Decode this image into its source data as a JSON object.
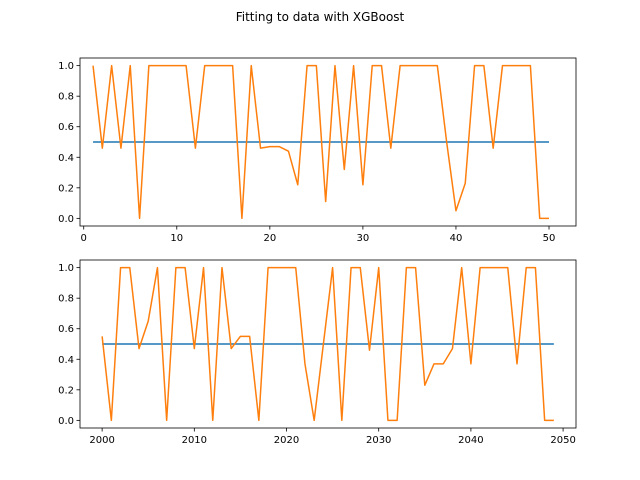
{
  "suptitle": "Fitting to data with XGBoost",
  "chart_data": [
    {
      "type": "line",
      "title": "",
      "xlabel": "",
      "ylabel": "",
      "xlim": [
        -0.4,
        52.9
      ],
      "ylim": [
        -0.05,
        1.05
      ],
      "xticks": [
        0,
        10,
        20,
        30,
        40,
        50
      ],
      "yticks": [
        0.0,
        0.2,
        0.4,
        0.6,
        0.8,
        1.0
      ],
      "xtick_labels": [
        "0",
        "10",
        "20",
        "30",
        "40",
        "50"
      ],
      "ytick_labels": [
        "0.0",
        "0.2",
        "0.4",
        "0.6",
        "0.8",
        "1.0"
      ],
      "grid": false,
      "series": [
        {
          "color": "#1f77b4",
          "x": [
            1,
            50
          ],
          "y": [
            0.5,
            0.5
          ]
        },
        {
          "color": "#ff7f0e",
          "x": [
            1,
            2,
            3,
            4,
            5,
            6,
            7,
            8,
            9,
            10,
            11,
            12,
            13,
            14,
            15,
            16,
            17,
            18,
            19,
            20,
            21,
            22,
            23,
            24,
            25,
            26,
            27,
            28,
            29,
            30,
            31,
            32,
            33,
            34,
            35,
            36,
            37,
            38,
            39,
            40,
            41,
            42,
            43,
            44,
            45,
            46,
            47,
            48,
            49,
            50
          ],
          "y": [
            1.0,
            0.46,
            1.0,
            0.46,
            1.0,
            0.0,
            1.0,
            1.0,
            1.0,
            1.0,
            1.0,
            0.46,
            1.0,
            1.0,
            1.0,
            1.0,
            0.0,
            1.0,
            0.46,
            0.47,
            0.47,
            0.44,
            0.22,
            1.0,
            1.0,
            0.11,
            1.0,
            0.32,
            1.0,
            0.22,
            1.0,
            1.0,
            0.46,
            1.0,
            1.0,
            1.0,
            1.0,
            1.0,
            0.5,
            0.05,
            0.23,
            1.0,
            1.0,
            0.46,
            1.0,
            1.0,
            1.0,
            1.0,
            0.0,
            0.0
          ]
        }
      ]
    },
    {
      "type": "line",
      "title": "",
      "xlabel": "",
      "ylabel": "",
      "xlim": [
        1997.6,
        2051.4
      ],
      "ylim": [
        -0.05,
        1.05
      ],
      "xticks": [
        2000,
        2010,
        2020,
        2030,
        2040,
        2050
      ],
      "yticks": [
        0.0,
        0.2,
        0.4,
        0.6,
        0.8,
        1.0
      ],
      "xtick_labels": [
        "2000",
        "2010",
        "2020",
        "2030",
        "2040",
        "2050"
      ],
      "ytick_labels": [
        "0.0",
        "0.2",
        "0.4",
        "0.6",
        "0.8",
        "1.0"
      ],
      "grid": false,
      "series": [
        {
          "color": "#1f77b4",
          "x": [
            2000,
            2049
          ],
          "y": [
            0.5,
            0.5
          ]
        },
        {
          "color": "#ff7f0e",
          "x": [
            2000,
            2001,
            2002,
            2003,
            2004,
            2005,
            2006,
            2007,
            2008,
            2009,
            2010,
            2011,
            2012,
            2013,
            2014,
            2015,
            2016,
            2017,
            2018,
            2019,
            2020,
            2021,
            2022,
            2023,
            2024,
            2025,
            2026,
            2027,
            2028,
            2029,
            2030,
            2031,
            2032,
            2033,
            2034,
            2035,
            2036,
            2037,
            2038,
            2039,
            2040,
            2041,
            2042,
            2043,
            2044,
            2045,
            2046,
            2047,
            2048,
            2049
          ],
          "y": [
            0.55,
            0.0,
            1.0,
            1.0,
            0.47,
            0.65,
            1.0,
            0.0,
            1.0,
            1.0,
            0.47,
            1.0,
            0.0,
            1.0,
            0.47,
            0.55,
            0.55,
            0.0,
            1.0,
            1.0,
            1.0,
            1.0,
            0.37,
            0.0,
            0.5,
            1.0,
            0.0,
            1.0,
            1.0,
            0.46,
            1.0,
            0.0,
            0.0,
            1.0,
            1.0,
            0.23,
            0.37,
            0.37,
            0.47,
            1.0,
            0.37,
            1.0,
            1.0,
            1.0,
            1.0,
            0.37,
            1.0,
            1.0,
            0.0,
            0.0
          ]
        }
      ]
    }
  ]
}
